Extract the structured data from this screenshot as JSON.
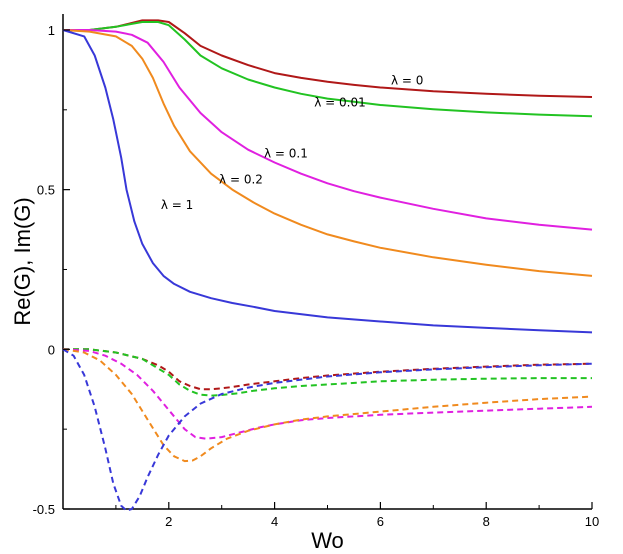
{
  "chart_data": {
    "type": "line",
    "title": "",
    "xlabel": "Wo",
    "ylabel": "Re(G), Im(G)",
    "xlim": [
      0,
      10
    ],
    "ylim": [
      -0.5,
      1.05
    ],
    "x_ticks": [
      2,
      4,
      6,
      8,
      10
    ],
    "x_tick_labels": [
      "2",
      "4",
      "6",
      "8",
      "10"
    ],
    "y_ticks": [
      -0.5,
      0,
      0.5,
      1
    ],
    "y_tick_labels": [
      "-0.5",
      "0",
      "0.5",
      "1"
    ],
    "grid": false,
    "series": [
      {
        "name": "Re(G), λ = 0",
        "part": "real",
        "style": "solid",
        "color": "#b01818",
        "x": [
          0,
          0.5,
          1,
          1.5,
          1.8,
          2,
          2.3,
          2.6,
          3,
          3.5,
          4,
          4.5,
          5,
          5.5,
          6,
          7,
          8,
          9,
          10
        ],
        "y": [
          1,
          1.0,
          1.01,
          1.03,
          1.03,
          1.025,
          0.99,
          0.95,
          0.92,
          0.89,
          0.865,
          0.85,
          0.838,
          0.828,
          0.82,
          0.808,
          0.8,
          0.794,
          0.79
        ]
      },
      {
        "name": "Re(G), λ = 0.01",
        "part": "real",
        "style": "solid",
        "color": "#22c322",
        "x": [
          0,
          0.5,
          1,
          1.5,
          1.8,
          2,
          2.3,
          2.6,
          3,
          3.5,
          4,
          4.5,
          5,
          5.5,
          6,
          7,
          8,
          9,
          10
        ],
        "y": [
          1,
          1.0,
          1.01,
          1.025,
          1.025,
          1.015,
          0.97,
          0.92,
          0.88,
          0.845,
          0.82,
          0.8,
          0.785,
          0.775,
          0.765,
          0.752,
          0.742,
          0.735,
          0.73
        ]
      },
      {
        "name": "Re(G), λ = 0.1",
        "part": "real",
        "style": "solid",
        "color": "#e020e0",
        "x": [
          0,
          0.5,
          1,
          1.3,
          1.6,
          1.9,
          2.2,
          2.6,
          3,
          3.5,
          4,
          4.5,
          5,
          5.5,
          6,
          7,
          8,
          9,
          10
        ],
        "y": [
          1,
          1.0,
          0.995,
          0.985,
          0.96,
          0.9,
          0.82,
          0.74,
          0.68,
          0.625,
          0.585,
          0.55,
          0.52,
          0.495,
          0.475,
          0.44,
          0.41,
          0.39,
          0.375
        ]
      },
      {
        "name": "Re(G), λ = 0.2",
        "part": "real",
        "style": "solid",
        "color": "#f08a1e",
        "x": [
          0,
          0.5,
          1,
          1.3,
          1.5,
          1.7,
          1.9,
          2.1,
          2.4,
          2.8,
          3.2,
          3.6,
          4,
          4.5,
          5,
          5.5,
          6,
          7,
          8,
          9,
          10
        ],
        "y": [
          1,
          0.995,
          0.98,
          0.95,
          0.91,
          0.85,
          0.77,
          0.7,
          0.62,
          0.55,
          0.5,
          0.46,
          0.425,
          0.39,
          0.36,
          0.338,
          0.318,
          0.288,
          0.265,
          0.245,
          0.23
        ]
      },
      {
        "name": "Re(G), λ = 1",
        "part": "real",
        "style": "solid",
        "color": "#3838d8",
        "x": [
          0,
          0.4,
          0.6,
          0.8,
          0.95,
          1.1,
          1.2,
          1.35,
          1.5,
          1.7,
          1.9,
          2.1,
          2.4,
          2.8,
          3.2,
          3.6,
          4,
          5,
          6,
          7,
          8,
          9,
          10
        ],
        "y": [
          1,
          0.98,
          0.92,
          0.82,
          0.72,
          0.6,
          0.5,
          0.4,
          0.33,
          0.27,
          0.23,
          0.205,
          0.18,
          0.16,
          0.145,
          0.133,
          0.12,
          0.1,
          0.087,
          0.075,
          0.067,
          0.06,
          0.053
        ]
      },
      {
        "name": "Im(G), λ = 0",
        "part": "imaginary",
        "style": "dashed",
        "color": "#b01818",
        "x": [
          0,
          0.5,
          1,
          1.5,
          1.8,
          2,
          2.2,
          2.4,
          2.6,
          2.8,
          3,
          3.2,
          3.5,
          4,
          4.5,
          5,
          6,
          7,
          8,
          9,
          10
        ],
        "y": [
          0,
          0,
          -0.01,
          -0.03,
          -0.05,
          -0.07,
          -0.1,
          -0.115,
          -0.125,
          -0.125,
          -0.122,
          -0.118,
          -0.11,
          -0.1,
          -0.09,
          -0.082,
          -0.07,
          -0.061,
          -0.054,
          -0.048,
          -0.045
        ]
      },
      {
        "name": "Im(G), λ = 0.01",
        "part": "imaginary",
        "style": "dashed",
        "color": "#22c322",
        "x": [
          0,
          0.5,
          1,
          1.5,
          1.8,
          2,
          2.2,
          2.4,
          2.6,
          2.8,
          3,
          3.3,
          3.6,
          4,
          4.5,
          5,
          6,
          7,
          8,
          9,
          10
        ],
        "y": [
          0,
          0,
          -0.01,
          -0.03,
          -0.06,
          -0.08,
          -0.11,
          -0.13,
          -0.142,
          -0.145,
          -0.143,
          -0.138,
          -0.13,
          -0.122,
          -0.115,
          -0.11,
          -0.1,
          -0.095,
          -0.092,
          -0.09,
          -0.09
        ]
      },
      {
        "name": "Im(G), λ = 0.1",
        "part": "imaginary",
        "style": "dashed",
        "color": "#e020e0",
        "x": [
          0,
          0.5,
          0.8,
          1.1,
          1.4,
          1.7,
          2,
          2.3,
          2.5,
          2.7,
          3,
          3.3,
          3.7,
          4,
          4.5,
          5,
          6,
          7,
          8,
          9,
          10
        ],
        "y": [
          0,
          -0.005,
          -0.02,
          -0.045,
          -0.08,
          -0.13,
          -0.19,
          -0.25,
          -0.275,
          -0.28,
          -0.275,
          -0.262,
          -0.245,
          -0.235,
          -0.222,
          -0.215,
          -0.205,
          -0.198,
          -0.192,
          -0.186,
          -0.18
        ]
      },
      {
        "name": "Im(G), λ = 0.2",
        "part": "imaginary",
        "style": "dashed",
        "color": "#f08a1e",
        "x": [
          0,
          0.4,
          0.7,
          1,
          1.3,
          1.6,
          1.9,
          2.1,
          2.3,
          2.45,
          2.6,
          2.8,
          3.1,
          3.5,
          4,
          4.5,
          5,
          6,
          7,
          8,
          9,
          10
        ],
        "y": [
          0,
          -0.01,
          -0.035,
          -0.08,
          -0.14,
          -0.22,
          -0.3,
          -0.335,
          -0.35,
          -0.348,
          -0.335,
          -0.31,
          -0.28,
          -0.255,
          -0.235,
          -0.22,
          -0.21,
          -0.195,
          -0.18,
          -0.167,
          -0.156,
          -0.148
        ]
      },
      {
        "name": "Im(G), λ = 1",
        "part": "imaginary",
        "style": "dashed",
        "color": "#3838d8",
        "x": [
          0,
          0.2,
          0.4,
          0.6,
          0.8,
          0.95,
          1.1,
          1.2,
          1.3,
          1.45,
          1.6,
          1.8,
          2,
          2.3,
          2.6,
          3,
          3.5,
          4,
          5,
          6,
          7,
          8,
          9,
          10
        ],
        "y": [
          0,
          -0.02,
          -0.08,
          -0.18,
          -0.31,
          -0.42,
          -0.49,
          -0.505,
          -0.5,
          -0.46,
          -0.4,
          -0.33,
          -0.27,
          -0.21,
          -0.17,
          -0.14,
          -0.12,
          -0.105,
          -0.085,
          -0.072,
          -0.063,
          -0.056,
          -0.05,
          -0.045
        ]
      }
    ],
    "annotations": [
      {
        "text": "λ = 0",
        "x": 6.2,
        "y": 0.83
      },
      {
        "text": "λ = 0.01",
        "x": 4.75,
        "y": 0.76
      },
      {
        "text": "λ = 0.1",
        "x": 3.8,
        "y": 0.6
      },
      {
        "text": "λ = 0.2",
        "x": 2.95,
        "y": 0.52
      },
      {
        "text": "λ = 1",
        "x": 1.85,
        "y": 0.44
      }
    ]
  }
}
